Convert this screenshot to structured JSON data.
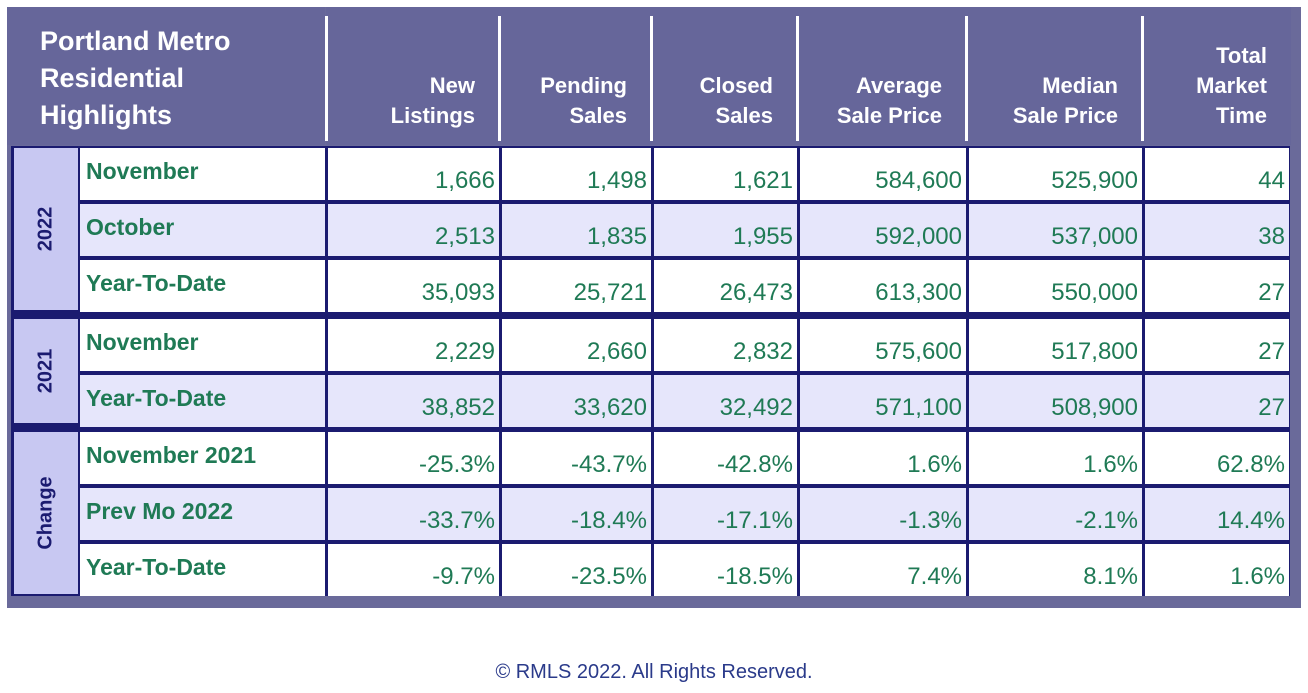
{
  "header": {
    "title": "Portland Metro\nResidential\nHighlights",
    "columns": [
      "New\nListings",
      "Pending\nSales",
      "Closed\nSales",
      "Average\nSale Price",
      "Median\nSale Price",
      "Total\nMarket\nTime"
    ]
  },
  "groups": [
    {
      "label": "2022",
      "rows": [
        {
          "label": "November",
          "values": [
            "1,666",
            "1,498",
            "1,621",
            "584,600",
            "525,900",
            "44"
          ]
        },
        {
          "label": "October",
          "values": [
            "2,513",
            "1,835",
            "1,955",
            "592,000",
            "537,000",
            "38"
          ]
        },
        {
          "label": "Year-To-Date",
          "values": [
            "35,093",
            "25,721",
            "26,473",
            "613,300",
            "550,000",
            "27"
          ]
        }
      ]
    },
    {
      "label": "2021",
      "rows": [
        {
          "label": "November",
          "values": [
            "2,229",
            "2,660",
            "2,832",
            "575,600",
            "517,800",
            "27"
          ]
        },
        {
          "label": "Year-To-Date",
          "values": [
            "38,852",
            "33,620",
            "32,492",
            "571,100",
            "508,900",
            "27"
          ]
        }
      ]
    },
    {
      "label": "Change",
      "rows": [
        {
          "label": "November 2021",
          "values": [
            "-25.3%",
            "-43.7%",
            "-42.8%",
            "1.6%",
            "1.6%",
            "62.8%"
          ]
        },
        {
          "label": "Prev Mo 2022",
          "values": [
            "-33.7%",
            "-18.4%",
            "-17.1%",
            "-1.3%",
            "-2.1%",
            "14.4%"
          ]
        },
        {
          "label": "Year-To-Date",
          "values": [
            "-9.7%",
            "-23.5%",
            "-18.5%",
            "7.4%",
            "8.1%",
            "1.6%"
          ]
        }
      ]
    }
  ],
  "footer": "© RMLS 2022. All Rights Reserved.",
  "colors": {
    "header_bg": "#66669a",
    "header_text": "#ffffff",
    "border": "#1b1b70",
    "year_cell": "#c8c8f2",
    "alt_row": "#e6e6fb",
    "value_text": "#1f7a55"
  }
}
